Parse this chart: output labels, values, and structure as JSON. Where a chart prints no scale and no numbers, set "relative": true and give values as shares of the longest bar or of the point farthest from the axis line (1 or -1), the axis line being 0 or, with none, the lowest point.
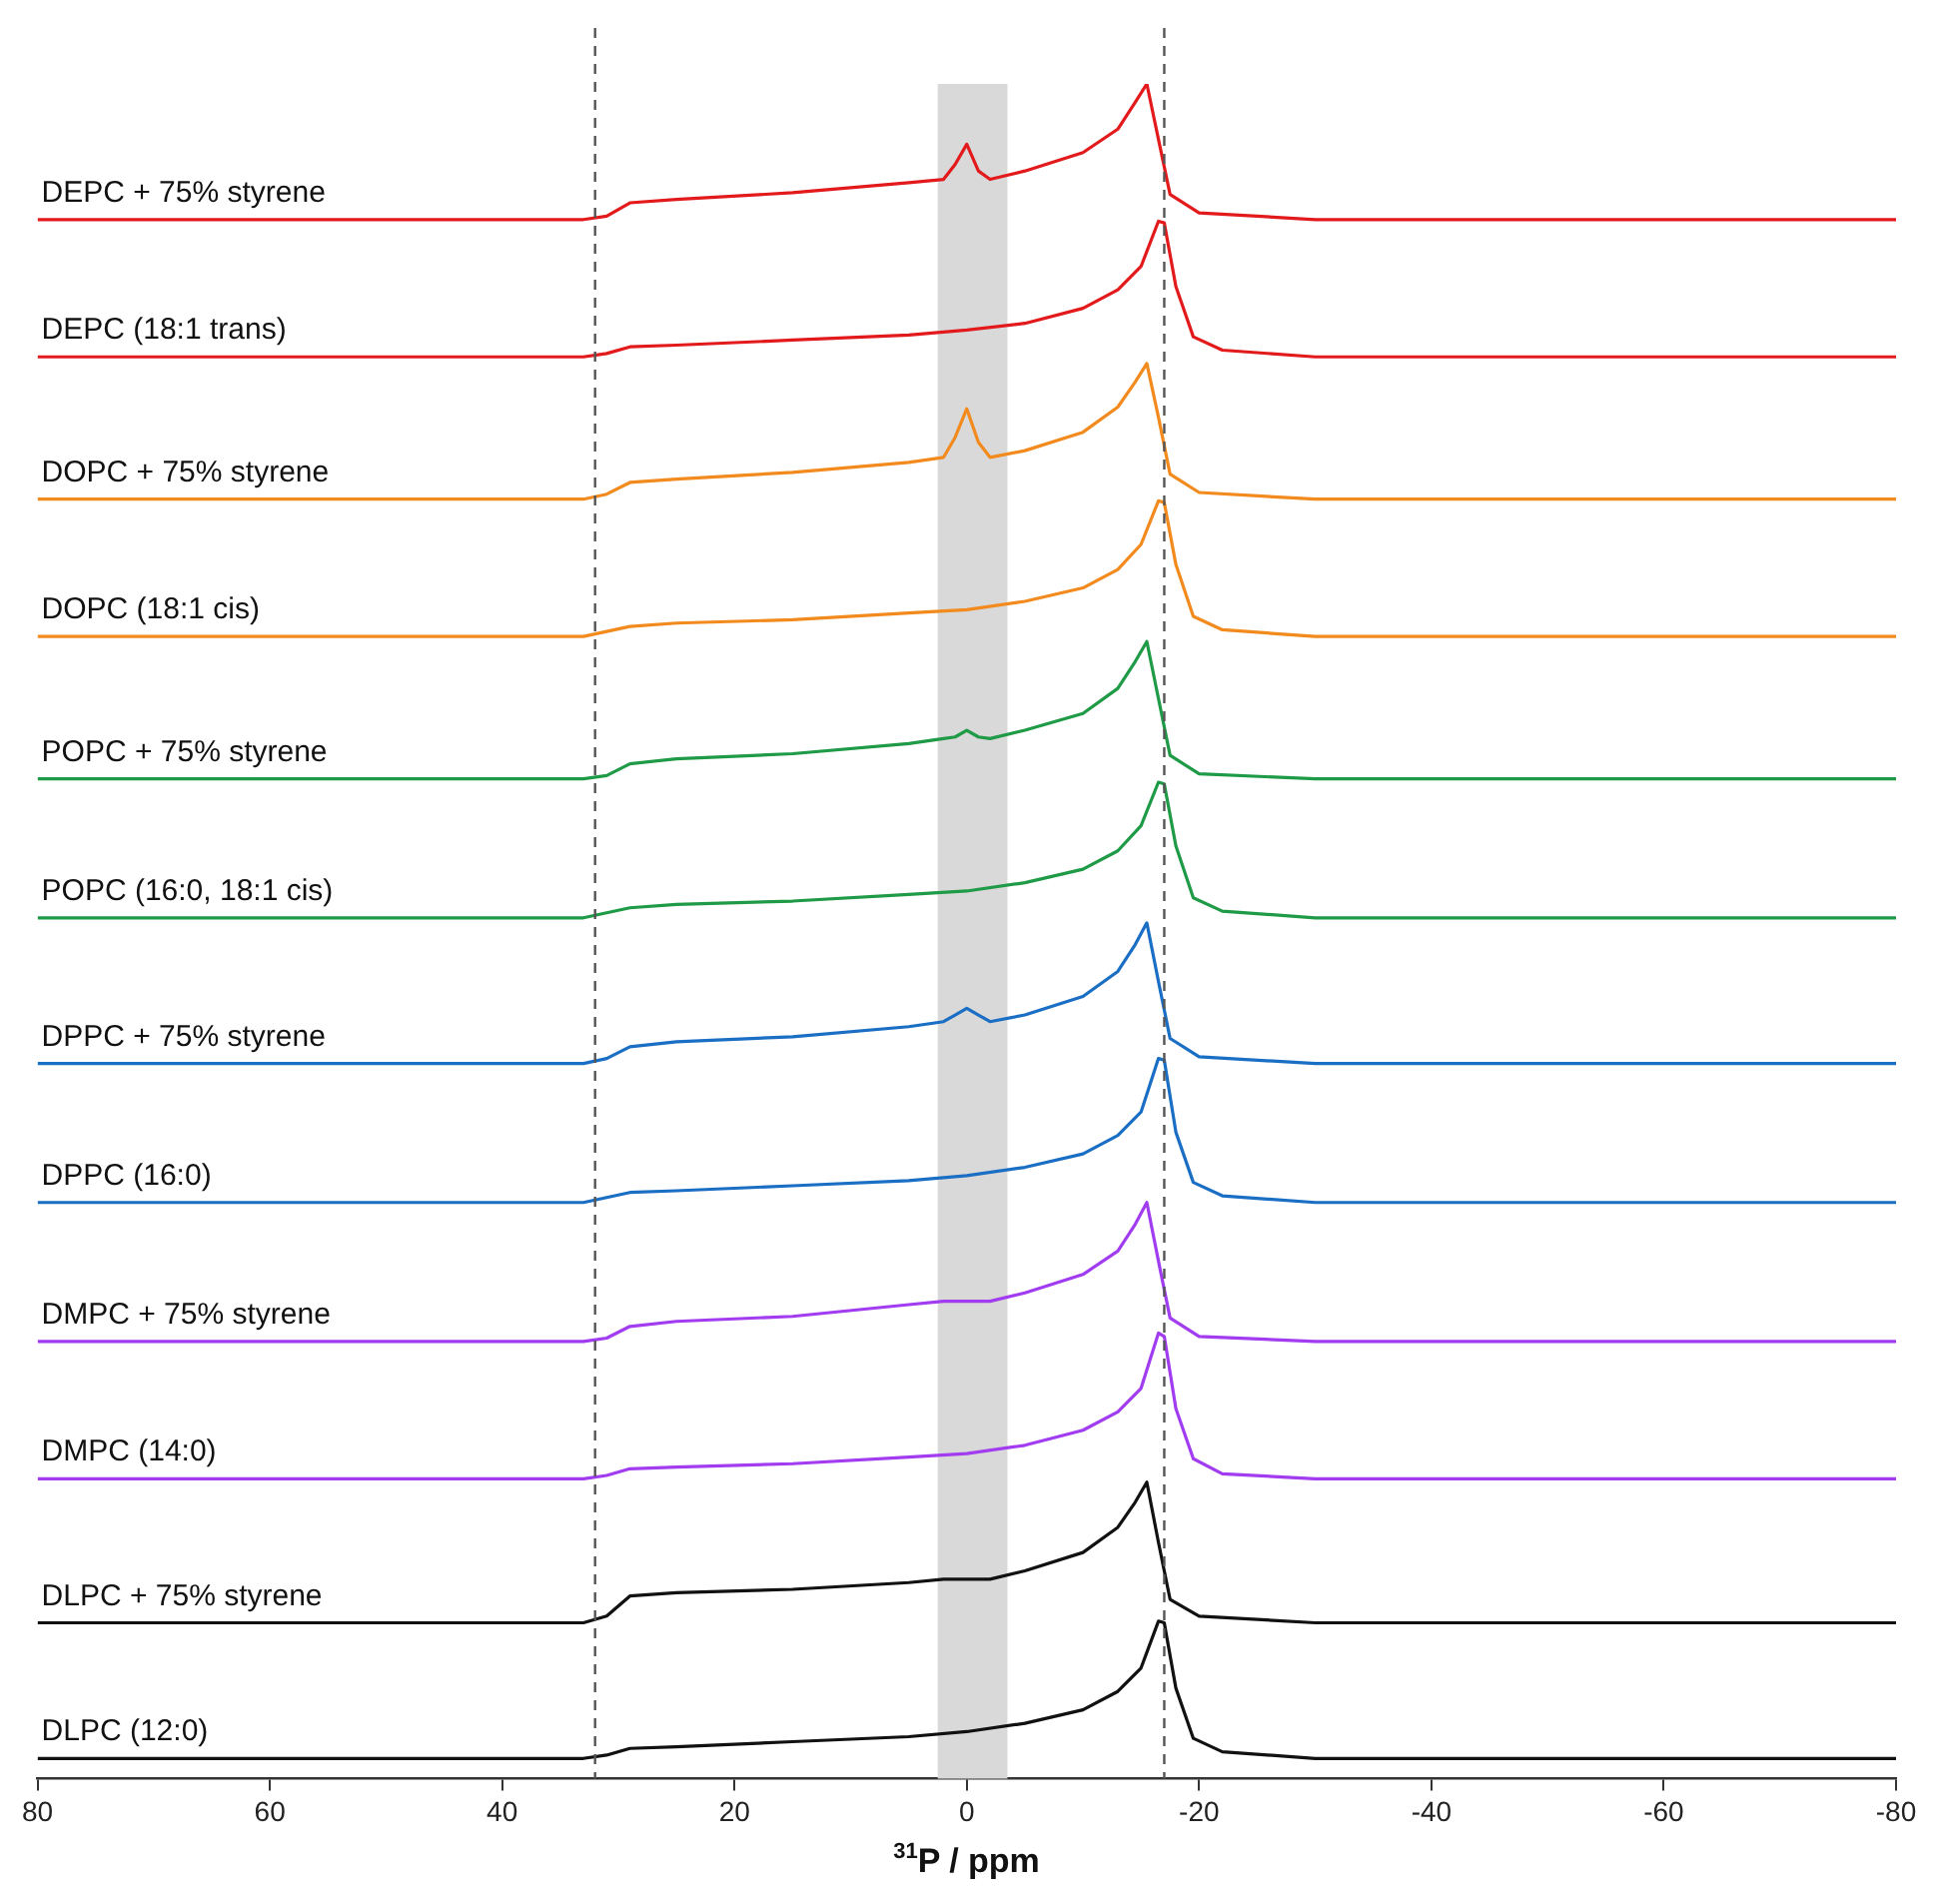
{
  "chart_data": {
    "type": "line",
    "relative": true,
    "xlabel": "$^{31}$P / ppm",
    "xlim": [
      80,
      -80
    ],
    "xticks": [
      80,
      60,
      40,
      20,
      0,
      -20,
      -40,
      -60,
      -80
    ],
    "grid": false,
    "legend": false,
    "marker": "none",
    "line_style": "solid",
    "ref_lines": [
      {
        "axis": "x",
        "value": 32,
        "color": "#555555",
        "line_style": "dashed"
      },
      {
        "axis": "x",
        "value": -17,
        "color": "#555555",
        "line_style": "dashed"
      }
    ],
    "bands": [
      {
        "axis": "x",
        "from": 2.5,
        "to": -3.5,
        "color": "#d9d9d9"
      }
    ],
    "series": [
      {
        "name": "DEPC + 75% styrene",
        "color": "#e31a1c",
        "x": [
          80,
          33,
          31,
          29,
          25,
          15,
          5,
          2,
          1,
          0,
          -1,
          -2,
          -5,
          -10,
          -13,
          -14.5,
          -15.5,
          -16.5,
          -17.5,
          -20,
          -30,
          -80
        ],
        "values": [
          0.919,
          0.919,
          0.921,
          0.929,
          0.931,
          0.935,
          0.941,
          0.943,
          0.952,
          0.964,
          0.948,
          0.943,
          0.948,
          0.959,
          0.973,
          0.989,
          1,
          0.967,
          0.934,
          0.923,
          0.919,
          0.919
        ]
      },
      {
        "name": "DEPC (18:1 trans)",
        "color": "#e31a1c",
        "x": [
          80,
          33,
          31,
          29,
          25,
          15,
          5,
          0,
          -5,
          -10,
          -13,
          -15,
          -16.5,
          -17,
          -18,
          -19.5,
          -22,
          -30,
          -80
        ],
        "values": [
          0.837,
          0.837,
          0.839,
          0.843,
          0.844,
          0.847,
          0.85,
          0.853,
          0.857,
          0.866,
          0.877,
          0.891,
          0.918,
          0.917,
          0.879,
          0.849,
          0.841,
          0.837,
          0.837
        ]
      },
      {
        "name": "DOPC + 75% styrene",
        "color": "#f28a1e",
        "x": [
          80,
          33,
          31,
          29,
          25,
          15,
          5,
          2,
          1,
          0,
          -1,
          -2,
          -5,
          -10,
          -13,
          -14.5,
          -15.5,
          -16.5,
          -17.5,
          -20,
          -30,
          -80
        ],
        "values": [
          0.752,
          0.752,
          0.755,
          0.762,
          0.764,
          0.768,
          0.774,
          0.777,
          0.789,
          0.806,
          0.786,
          0.777,
          0.781,
          0.792,
          0.807,
          0.822,
          0.833,
          0.801,
          0.767,
          0.756,
          0.752,
          0.752
        ]
      },
      {
        "name": "DOPC (18:1 cis)",
        "color": "#f28a1e",
        "x": [
          80,
          33,
          31,
          29,
          25,
          15,
          5,
          0,
          -5,
          -10,
          -13,
          -15,
          -16.5,
          -17,
          -18,
          -19.5,
          -22,
          -30,
          -80
        ],
        "values": [
          0.67,
          0.67,
          0.673,
          0.676,
          0.678,
          0.68,
          0.684,
          0.686,
          0.691,
          0.699,
          0.71,
          0.725,
          0.751,
          0.75,
          0.713,
          0.682,
          0.674,
          0.67,
          0.67
        ]
      },
      {
        "name": "POPC + 75% styrene",
        "color": "#1f9a46",
        "x": [
          80,
          33,
          31,
          29,
          25,
          15,
          5,
          2,
          1,
          0,
          -1,
          -2,
          -5,
          -10,
          -13,
          -14.5,
          -15.5,
          -16.5,
          -17.5,
          -20,
          -30,
          -80
        ],
        "values": [
          0.585,
          0.585,
          0.587,
          0.594,
          0.597,
          0.6,
          0.606,
          0.609,
          0.61,
          0.614,
          0.61,
          0.609,
          0.614,
          0.624,
          0.639,
          0.655,
          0.667,
          0.633,
          0.599,
          0.588,
          0.585,
          0.585
        ]
      },
      {
        "name": "POPC (16:0, 18:1 cis)",
        "color": "#1f9a46",
        "x": [
          80,
          33,
          31,
          29,
          25,
          15,
          5,
          0,
          -5,
          -10,
          -13,
          -15,
          -16.5,
          -17,
          -18,
          -19.5,
          -22,
          -30,
          -80
        ],
        "values": [
          0.502,
          0.502,
          0.505,
          0.508,
          0.51,
          0.512,
          0.516,
          0.518,
          0.523,
          0.531,
          0.542,
          0.557,
          0.583,
          0.582,
          0.545,
          0.514,
          0.506,
          0.502,
          0.502
        ]
      },
      {
        "name": "DPPC + 75% styrene",
        "color": "#1a6fc4",
        "x": [
          80,
          33,
          31,
          29,
          25,
          15,
          5,
          2,
          1,
          0,
          -1,
          -2,
          -5,
          -10,
          -13,
          -14.5,
          -15.5,
          -16.5,
          -17.5,
          -20,
          -30,
          -80
        ],
        "values": [
          0.415,
          0.415,
          0.418,
          0.425,
          0.428,
          0.431,
          0.437,
          0.44,
          0.444,
          0.448,
          0.444,
          0.44,
          0.444,
          0.455,
          0.47,
          0.486,
          0.499,
          0.464,
          0.43,
          0.419,
          0.415,
          0.415
        ]
      },
      {
        "name": "DPPC (16:0)",
        "color": "#1a6fc4",
        "x": [
          80,
          33,
          31,
          29,
          25,
          15,
          5,
          0,
          -5,
          -10,
          -13,
          -15,
          -16.5,
          -17,
          -18,
          -19.5,
          -22,
          -30,
          -80
        ],
        "values": [
          0.332,
          0.332,
          0.335,
          0.338,
          0.339,
          0.342,
          0.345,
          0.348,
          0.353,
          0.361,
          0.372,
          0.386,
          0.418,
          0.417,
          0.374,
          0.344,
          0.336,
          0.332,
          0.332
        ]
      },
      {
        "name": "DMPC + 75% styrene",
        "color": "#a23cf0",
        "x": [
          80,
          33,
          31,
          29,
          25,
          15,
          5,
          2,
          1,
          0,
          -1,
          -2,
          -5,
          -10,
          -13,
          -14.5,
          -15.5,
          -16.5,
          -17.5,
          -20,
          -30,
          -80
        ],
        "values": [
          0.249,
          0.249,
          0.251,
          0.258,
          0.261,
          0.264,
          0.271,
          0.273,
          0.273,
          0.273,
          0.273,
          0.273,
          0.278,
          0.289,
          0.303,
          0.319,
          0.332,
          0.297,
          0.263,
          0.252,
          0.249,
          0.249
        ]
      },
      {
        "name": "DMPC (14:0)",
        "color": "#a23cf0",
        "x": [
          80,
          33,
          31,
          29,
          25,
          15,
          5,
          0,
          -5,
          -10,
          -13,
          -15,
          -16.5,
          -17,
          -18,
          -19.5,
          -22,
          -30,
          -80
        ],
        "values": [
          0.167,
          0.167,
          0.169,
          0.173,
          0.174,
          0.176,
          0.18,
          0.182,
          0.187,
          0.196,
          0.207,
          0.221,
          0.254,
          0.252,
          0.209,
          0.179,
          0.17,
          0.167,
          0.167
        ]
      },
      {
        "name": "DLPC + 75% styrene",
        "color": "#111111",
        "x": [
          80,
          33,
          31,
          29,
          25,
          15,
          5,
          2,
          1,
          0,
          -1,
          -2,
          -5,
          -10,
          -13,
          -14.5,
          -15.5,
          -16.5,
          -17.5,
          -20,
          -30,
          -80
        ],
        "values": [
          0.081,
          0.081,
          0.085,
          0.097,
          0.099,
          0.101,
          0.105,
          0.107,
          0.107,
          0.107,
          0.107,
          0.107,
          0.112,
          0.123,
          0.138,
          0.153,
          0.165,
          0.129,
          0.095,
          0.085,
          0.081,
          0.081
        ]
      },
      {
        "name": "DLPC (12:0)",
        "color": "#111111",
        "x": [
          80,
          33,
          31,
          29,
          25,
          15,
          5,
          0,
          -5,
          -10,
          -13,
          -15,
          -16.5,
          -17,
          -18,
          -19.5,
          -22,
          -30,
          -80
        ],
        "values": [
          0,
          0,
          0.002,
          0.006,
          0.007,
          0.01,
          0.013,
          0.016,
          0.021,
          0.029,
          0.04,
          0.054,
          0.082,
          0.081,
          0.042,
          0.012,
          0.004,
          0,
          0
        ]
      }
    ]
  }
}
